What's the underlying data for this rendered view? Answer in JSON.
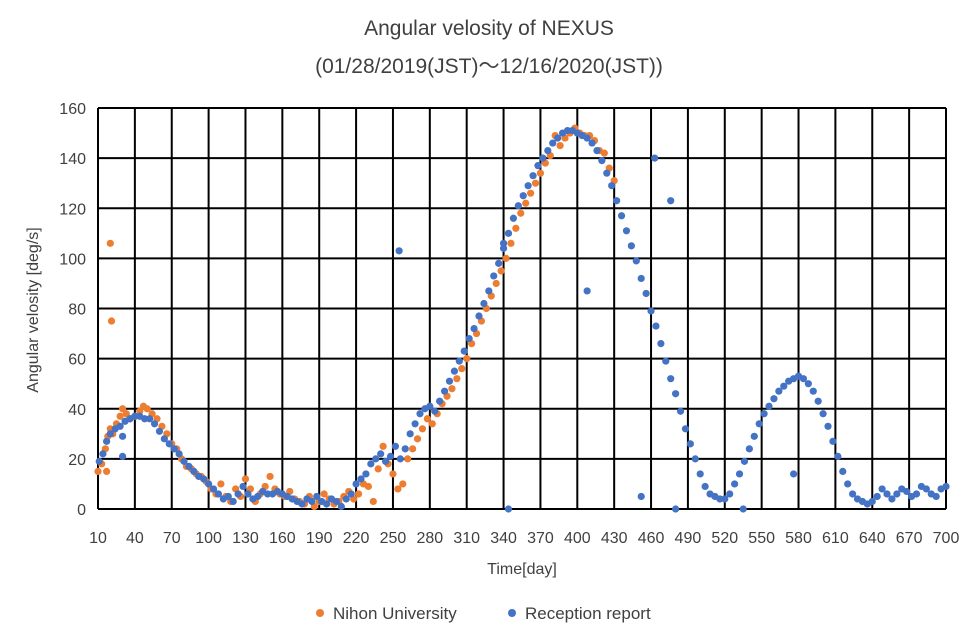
{
  "chart_data": {
    "type": "scatter",
    "title": "Angular velosity of NEXUS",
    "subtitle": "(01/28/2019(JST)～12/16/2020(JST))",
    "xlabel": "Time[day]",
    "ylabel": "Angular velosity [deg/s]",
    "xlim": [
      10,
      700
    ],
    "ylim": [
      0,
      160
    ],
    "x_ticks": [
      10,
      40,
      70,
      100,
      130,
      160,
      190,
      220,
      250,
      280,
      310,
      340,
      370,
      400,
      430,
      460,
      490,
      520,
      550,
      580,
      610,
      640,
      670,
      700
    ],
    "y_ticks": [
      0,
      20,
      40,
      60,
      80,
      100,
      120,
      140,
      160
    ],
    "grid": true,
    "legend_position": "bottom",
    "series": [
      {
        "name": "Nihon University",
        "color": "#ED7D31",
        "points": [
          [
            10,
            15
          ],
          [
            13,
            18
          ],
          [
            16,
            24
          ],
          [
            18,
            29
          ],
          [
            20,
            32
          ],
          [
            22,
            30
          ],
          [
            25,
            34
          ],
          [
            28,
            37
          ],
          [
            30,
            40
          ],
          [
            33,
            38
          ],
          [
            36,
            36
          ],
          [
            40,
            37
          ],
          [
            44,
            39
          ],
          [
            47,
            41
          ],
          [
            50,
            40
          ],
          [
            54,
            38
          ],
          [
            58,
            36
          ],
          [
            62,
            33
          ],
          [
            66,
            30
          ],
          [
            70,
            26
          ],
          [
            74,
            24
          ],
          [
            78,
            20
          ],
          [
            82,
            17
          ],
          [
            86,
            16
          ],
          [
            90,
            14
          ],
          [
            94,
            13
          ],
          [
            98,
            11
          ],
          [
            102,
            8
          ],
          [
            106,
            6
          ],
          [
            110,
            10
          ],
          [
            114,
            5
          ],
          [
            118,
            3
          ],
          [
            122,
            8
          ],
          [
            126,
            5
          ],
          [
            130,
            12
          ],
          [
            134,
            8
          ],
          [
            138,
            3
          ],
          [
            142,
            6
          ],
          [
            146,
            9
          ],
          [
            150,
            13
          ],
          [
            154,
            8
          ],
          [
            158,
            6
          ],
          [
            162,
            5
          ],
          [
            166,
            7
          ],
          [
            170,
            4
          ],
          [
            174,
            3
          ],
          [
            178,
            2
          ],
          [
            182,
            5
          ],
          [
            186,
            1
          ],
          [
            190,
            3
          ],
          [
            194,
            6
          ],
          [
            198,
            4
          ],
          [
            202,
            2
          ],
          [
            206,
            3
          ],
          [
            210,
            5
          ],
          [
            214,
            7
          ],
          [
            218,
            4
          ],
          [
            222,
            6
          ],
          [
            226,
            10
          ],
          [
            230,
            9
          ],
          [
            234,
            3
          ],
          [
            238,
            16
          ],
          [
            242,
            25
          ],
          [
            246,
            18
          ],
          [
            250,
            14
          ],
          [
            254,
            8
          ],
          [
            258,
            10
          ],
          [
            262,
            20
          ],
          [
            266,
            24
          ],
          [
            270,
            28
          ],
          [
            274,
            32
          ],
          [
            278,
            36
          ],
          [
            282,
            34
          ],
          [
            286,
            38
          ],
          [
            290,
            42
          ],
          [
            294,
            45
          ],
          [
            298,
            48
          ],
          [
            302,
            52
          ],
          [
            306,
            56
          ],
          [
            310,
            60
          ],
          [
            314,
            66
          ],
          [
            318,
            70
          ],
          [
            322,
            75
          ],
          [
            326,
            80
          ],
          [
            330,
            85
          ],
          [
            334,
            90
          ],
          [
            338,
            95
          ],
          [
            342,
            100
          ],
          [
            346,
            106
          ],
          [
            350,
            112
          ],
          [
            354,
            118
          ],
          [
            358,
            122
          ],
          [
            362,
            126
          ],
          [
            366,
            130
          ],
          [
            370,
            134
          ],
          [
            374,
            138
          ],
          [
            378,
            141
          ],
          [
            382,
            149
          ],
          [
            386,
            145
          ],
          [
            390,
            148
          ],
          [
            394,
            150
          ],
          [
            398,
            152
          ],
          [
            402,
            150
          ],
          [
            406,
            149
          ],
          [
            410,
            149
          ],
          [
            414,
            147
          ],
          [
            418,
            143
          ],
          [
            422,
            142
          ],
          [
            426,
            136
          ],
          [
            430,
            131
          ],
          [
            20,
            106
          ],
          [
            21,
            75
          ],
          [
            17,
            15
          ]
        ]
      },
      {
        "name": "Reception report",
        "color": "#4472C4",
        "points": [
          [
            11,
            19
          ],
          [
            14,
            22
          ],
          [
            17,
            27
          ],
          [
            20,
            30
          ],
          [
            24,
            32
          ],
          [
            28,
            33
          ],
          [
            32,
            35
          ],
          [
            36,
            36
          ],
          [
            40,
            37
          ],
          [
            44,
            37
          ],
          [
            48,
            36
          ],
          [
            52,
            36
          ],
          [
            56,
            34
          ],
          [
            60,
            31
          ],
          [
            64,
            28
          ],
          [
            68,
            26
          ],
          [
            72,
            24
          ],
          [
            76,
            22
          ],
          [
            80,
            19
          ],
          [
            84,
            17
          ],
          [
            88,
            15
          ],
          [
            92,
            13
          ],
          [
            96,
            12
          ],
          [
            100,
            10
          ],
          [
            104,
            8
          ],
          [
            108,
            6
          ],
          [
            112,
            4
          ],
          [
            116,
            5
          ],
          [
            120,
            3
          ],
          [
            124,
            6
          ],
          [
            128,
            9
          ],
          [
            132,
            6
          ],
          [
            136,
            4
          ],
          [
            140,
            5
          ],
          [
            144,
            7
          ],
          [
            148,
            6
          ],
          [
            152,
            6
          ],
          [
            156,
            7
          ],
          [
            160,
            6
          ],
          [
            164,
            5
          ],
          [
            168,
            4
          ],
          [
            172,
            3
          ],
          [
            176,
            2
          ],
          [
            180,
            4
          ],
          [
            184,
            3
          ],
          [
            188,
            5
          ],
          [
            192,
            3
          ],
          [
            196,
            2
          ],
          [
            200,
            4
          ],
          [
            204,
            3
          ],
          [
            208,
            1
          ],
          [
            212,
            4
          ],
          [
            216,
            6
          ],
          [
            220,
            10
          ],
          [
            224,
            12
          ],
          [
            228,
            14
          ],
          [
            232,
            18
          ],
          [
            236,
            20
          ],
          [
            240,
            22
          ],
          [
            244,
            19
          ],
          [
            248,
            21
          ],
          [
            252,
            25
          ],
          [
            256,
            20
          ],
          [
            260,
            24
          ],
          [
            264,
            30
          ],
          [
            268,
            34
          ],
          [
            272,
            38
          ],
          [
            276,
            40
          ],
          [
            280,
            41
          ],
          [
            284,
            39
          ],
          [
            288,
            43
          ],
          [
            292,
            47
          ],
          [
            296,
            51
          ],
          [
            300,
            55
          ],
          [
            304,
            59
          ],
          [
            308,
            63
          ],
          [
            312,
            68
          ],
          [
            316,
            72
          ],
          [
            320,
            77
          ],
          [
            324,
            82
          ],
          [
            328,
            87
          ],
          [
            332,
            93
          ],
          [
            336,
            98
          ],
          [
            340,
            104
          ],
          [
            344,
            110
          ],
          [
            348,
            116
          ],
          [
            352,
            121
          ],
          [
            356,
            125
          ],
          [
            360,
            129
          ],
          [
            364,
            133
          ],
          [
            368,
            137
          ],
          [
            372,
            140
          ],
          [
            376,
            143
          ],
          [
            380,
            146
          ],
          [
            384,
            148
          ],
          [
            388,
            150
          ],
          [
            392,
            151
          ],
          [
            396,
            151
          ],
          [
            400,
            150
          ],
          [
            404,
            149
          ],
          [
            408,
            148
          ],
          [
            412,
            146
          ],
          [
            416,
            143
          ],
          [
            420,
            139
          ],
          [
            424,
            134
          ],
          [
            428,
            129
          ],
          [
            432,
            123
          ],
          [
            436,
            117
          ],
          [
            440,
            111
          ],
          [
            444,
            105
          ],
          [
            448,
            99
          ],
          [
            452,
            92
          ],
          [
            456,
            86
          ],
          [
            460,
            79
          ],
          [
            464,
            73
          ],
          [
            468,
            66
          ],
          [
            472,
            59
          ],
          [
            476,
            52
          ],
          [
            480,
            46
          ],
          [
            484,
            39
          ],
          [
            488,
            32
          ],
          [
            492,
            26
          ],
          [
            496,
            20
          ],
          [
            500,
            14
          ],
          [
            504,
            9
          ],
          [
            508,
            6
          ],
          [
            512,
            5
          ],
          [
            516,
            4
          ],
          [
            520,
            4
          ],
          [
            524,
            6
          ],
          [
            528,
            10
          ],
          [
            532,
            14
          ],
          [
            536,
            19
          ],
          [
            540,
            24
          ],
          [
            544,
            29
          ],
          [
            548,
            34
          ],
          [
            552,
            38
          ],
          [
            556,
            41
          ],
          [
            560,
            44
          ],
          [
            564,
            47
          ],
          [
            568,
            49
          ],
          [
            572,
            51
          ],
          [
            576,
            52
          ],
          [
            580,
            53
          ],
          [
            584,
            52
          ],
          [
            588,
            50
          ],
          [
            592,
            47
          ],
          [
            596,
            43
          ],
          [
            600,
            38
          ],
          [
            604,
            33
          ],
          [
            608,
            27
          ],
          [
            612,
            21
          ],
          [
            616,
            15
          ],
          [
            620,
            10
          ],
          [
            624,
            6
          ],
          [
            628,
            4
          ],
          [
            632,
            3
          ],
          [
            636,
            2
          ],
          [
            640,
            3
          ],
          [
            644,
            5
          ],
          [
            648,
            8
          ],
          [
            652,
            6
          ],
          [
            656,
            4
          ],
          [
            660,
            6
          ],
          [
            664,
            8
          ],
          [
            668,
            7
          ],
          [
            672,
            5
          ],
          [
            676,
            6
          ],
          [
            680,
            9
          ],
          [
            684,
            8
          ],
          [
            688,
            6
          ],
          [
            692,
            5
          ],
          [
            696,
            8
          ],
          [
            700,
            9
          ],
          [
            30,
            29
          ],
          [
            30,
            21
          ],
          [
            255,
            103
          ],
          [
            340,
            106
          ],
          [
            344,
            0
          ],
          [
            408,
            87
          ],
          [
            463,
            140
          ],
          [
            476,
            123
          ],
          [
            452,
            5
          ],
          [
            480,
            0
          ],
          [
            576,
            14
          ],
          [
            535,
            0
          ]
        ]
      }
    ]
  }
}
